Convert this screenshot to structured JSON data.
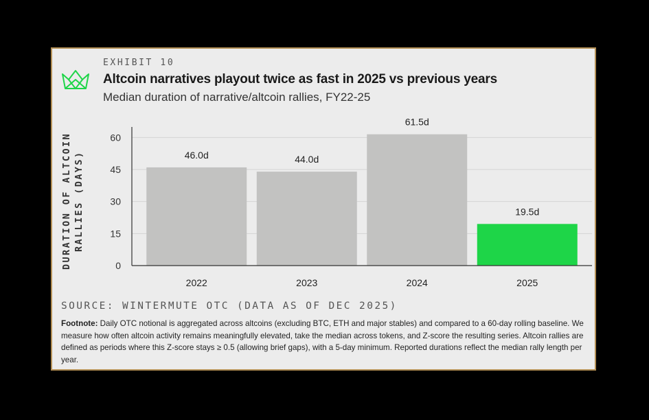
{
  "exhibit": "EXHIBIT 10",
  "title": "Altcoin narratives playout twice as fast in 2025 vs previous years",
  "subtitle": "Median duration of narrative/altcoin rallies, FY22-25",
  "colors": {
    "card_bg": "#ececec",
    "border": "#b38f55",
    "bar_gray": "#c2c2c1",
    "bar_green": "#1ed548",
    "logo_green": "#1ed548"
  },
  "logo_icon": "wintermute-logo-icon",
  "chart_data": {
    "type": "bar",
    "ylabel": "DURATION OF ALTCOIN RALLIES (DAYS)",
    "xlabel": "",
    "categories": [
      "2022",
      "2023",
      "2024",
      "2025"
    ],
    "values": [
      46.0,
      44.0,
      61.5,
      19.5
    ],
    "data_labels": [
      "46.0d",
      "44.0d",
      "61.5d",
      "19.5d"
    ],
    "highlight_colors": [
      "#c2c2c1",
      "#c2c2c1",
      "#c2c2c1",
      "#1ed548"
    ],
    "yticks": [
      0,
      15,
      30,
      45,
      60
    ],
    "ylim": [
      0,
      63
    ],
    "grid": true
  },
  "source": "SOURCE: WINTERMUTE OTC (DATA AS OF DEC 2025)",
  "footnote": {
    "label": "Footnote:",
    "text": " Daily OTC notional is aggregated across altcoins (excluding BTC, ETH and major stables) and compared to a 60-day rolling baseline. We measure how often altcoin activity remains meaningfully elevated, take the median across tokens, and Z-score the resulting series. Altcoin rallies are defined as periods where this Z-score stays ≥ 0.5 (allowing brief gaps), with a 5-day minimum. Reported durations reflect the median rally length per year."
  }
}
